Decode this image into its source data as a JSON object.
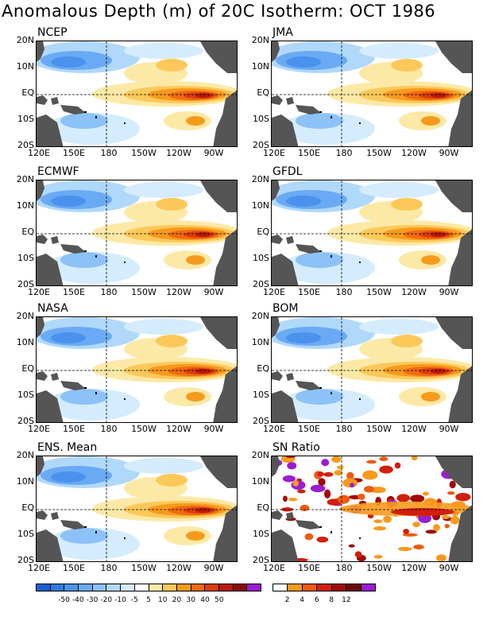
{
  "title": "Anomalous Depth (m) of 20C Isotherm: OCT 1986",
  "lat_labels": [
    "20N",
    "10N",
    "EQ",
    "10S",
    "20S"
  ],
  "lon_labels": [
    "120E",
    "150E",
    "180",
    "150W",
    "120W",
    "90W"
  ],
  "panels": [
    {
      "name": "NCEP"
    },
    {
      "name": "JMA"
    },
    {
      "name": "ECMWF"
    },
    {
      "name": "GFDL"
    },
    {
      "name": "NASA"
    },
    {
      "name": "BOM"
    },
    {
      "name": "ENS. Mean"
    },
    {
      "name": "SN Ratio"
    }
  ],
  "colorbar_anomaly": {
    "colors": [
      "#1a5fd0",
      "#2f7ae0",
      "#4a92ee",
      "#6aaaf4",
      "#8cc2f8",
      "#b0d8fb",
      "#d4ecfd",
      "#ffffff",
      "#fde9a6",
      "#fdc85a",
      "#f79a1c",
      "#ef6a10",
      "#dc3c0c",
      "#b81a0a",
      "#8c0a0a",
      "#9b1dd0"
    ],
    "labels": [
      "-50",
      "-40",
      "-30",
      "-20",
      "-10",
      "-5",
      "5",
      "10",
      "20",
      "30",
      "40",
      "50"
    ]
  },
  "colorbar_sn": {
    "colors": [
      "#ffffff",
      "#f79a1c",
      "#ef5a10",
      "#d21e0c",
      "#a00a0a",
      "#6e0808",
      "#9b1dd0"
    ],
    "labels": [
      "2",
      "4",
      "6",
      "8",
      "12"
    ]
  },
  "colors": {
    "land": "#555555"
  }
}
